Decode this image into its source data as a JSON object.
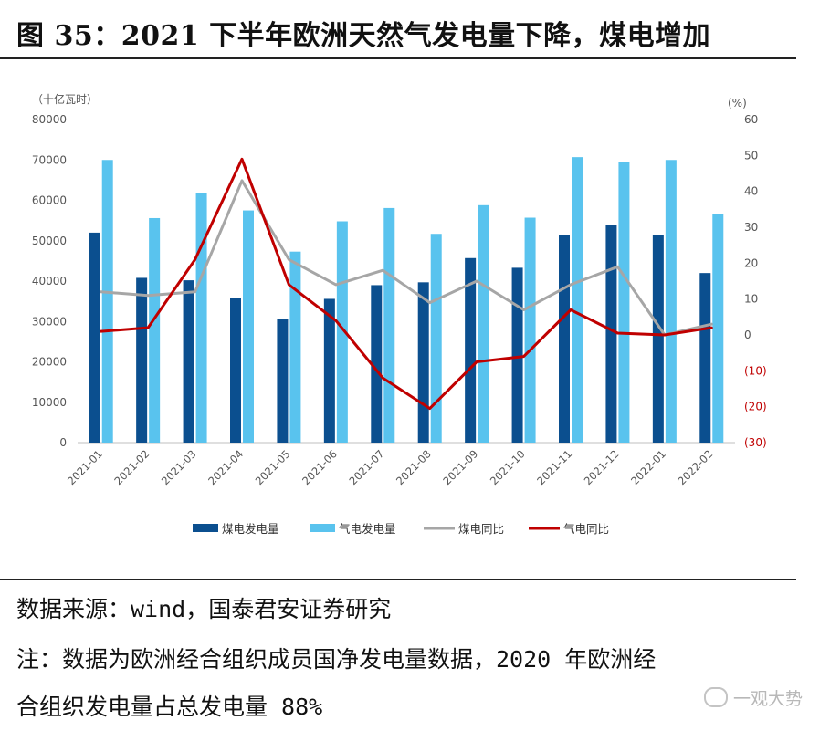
{
  "title": "图 35：2021 下半年欧洲天然气发电量下降，煤电增加",
  "source": "数据来源：wind，国泰君安证券研究",
  "note_line1": "注：数据为欧洲经合组织成员国净发电量数据，2020 年欧洲经",
  "note_line2": "合组织发电量占总发电量 88%",
  "watermark": "一观大势",
  "colors": {
    "coal_bar": "#0b4f8f",
    "gas_bar": "#59c3ee",
    "coal_yoy": "#a6a6a6",
    "gas_yoy": "#c00000",
    "negative_axis": "#c00000"
  },
  "chart_data": {
    "type": "bar+line",
    "left_unit": "（十亿瓦时）",
    "right_unit": "(%)",
    "categories": [
      "2021-01",
      "2021-02",
      "2021-03",
      "2021-04",
      "2021-05",
      "2021-06",
      "2021-07",
      "2021-08",
      "2021-09",
      "2021-10",
      "2021-11",
      "2021-12",
      "2022-01",
      "2022-02"
    ],
    "left_ticks": [
      "0",
      "10000",
      "20000",
      "30000",
      "40000",
      "50000",
      "60000",
      "70000",
      "80000"
    ],
    "right_ticks": [
      "(30)",
      "(20)",
      "(10)",
      "0",
      "10",
      "20",
      "30",
      "40",
      "50",
      "60"
    ],
    "ylim_left": [
      0,
      80000
    ],
    "ylim_right": [
      -30,
      60
    ],
    "bar_series": [
      {
        "name": "煤电发电量",
        "values": [
          52000,
          40800,
          40200,
          35800,
          30700,
          35600,
          39000,
          39700,
          45700,
          43300,
          51400,
          53800,
          51500,
          42000
        ]
      },
      {
        "name": "气电发电量",
        "values": [
          70000,
          55600,
          61900,
          57500,
          47300,
          54800,
          58100,
          51700,
          58800,
          55700,
          70700,
          69500,
          70000,
          56500
        ]
      }
    ],
    "line_series": [
      {
        "name": "煤电同比",
        "values": [
          12,
          11,
          12,
          43,
          21,
          14,
          18,
          9,
          15,
          7,
          14,
          19,
          0,
          3
        ]
      },
      {
        "name": "气电同比",
        "values": [
          1,
          2,
          21,
          49,
          14,
          4,
          -12,
          -20.5,
          -7.5,
          -6,
          7,
          0.5,
          0,
          2
        ]
      }
    ]
  }
}
